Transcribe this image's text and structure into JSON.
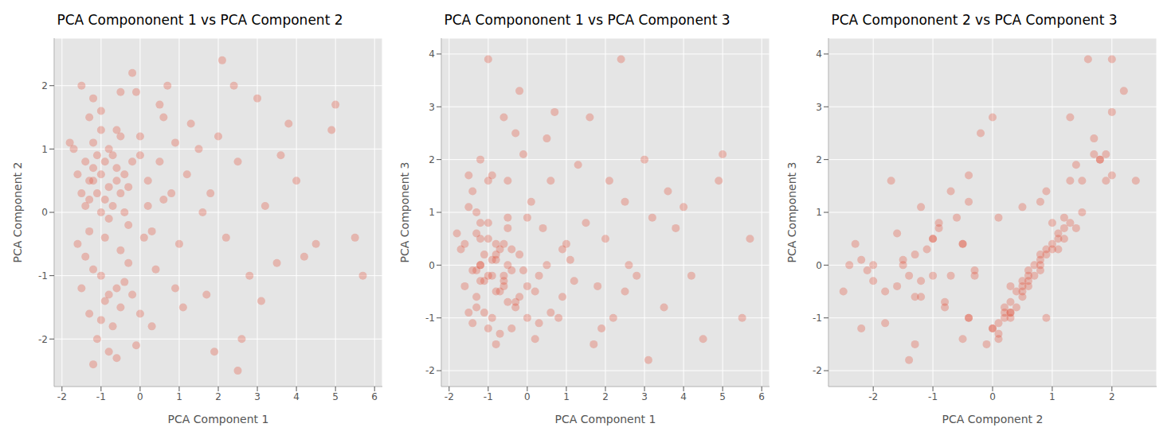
{
  "chart_data": [
    {
      "type": "scatter",
      "title": "PCA Compononent 1 vs PCA Component 2",
      "x_label": "PCA Component 1",
      "y_label": "PCA Component 2",
      "color": "#E24A33",
      "marker": "circle",
      "grid": true,
      "xlim": [
        -2.2,
        6.2
      ],
      "xticks": [
        -2,
        -1,
        0,
        1,
        2,
        3,
        4,
        5,
        6
      ],
      "ylim": [
        -2.75,
        2.75
      ],
      "yticks": [
        -2,
        -1,
        0,
        1,
        2
      ],
      "x": [
        -1.2,
        -1.0,
        -0.8,
        -1.3,
        -0.9,
        -0.6,
        -1.1,
        -1.4,
        -0.7,
        -1.2,
        -0.5,
        -1.0,
        -0.8,
        -1.3,
        -0.4,
        -1.5,
        -0.9,
        -1.1,
        -0.6,
        -1.6,
        -0.3,
        -1.2,
        -0.7,
        -1.0,
        -0.2,
        -1.4,
        -0.5,
        -0.8,
        -1.7,
        -1.3,
        -0.8,
        -0.6,
        -1.0,
        -0.5,
        -0.7,
        -1.2,
        -0.9,
        -0.4,
        -1.1,
        -0.6,
        -1.3,
        -0.2,
        -0.8,
        -1.5,
        0,
        -1.2,
        -0.3,
        -1.0,
        -0.5,
        -1.4,
        0.2,
        0.5,
        0,
        0.3,
        0.8,
        0.6,
        -0.1,
        1.0,
        0.4,
        1.2,
        0.1,
        0.7,
        -0.2,
        1.5,
        0.9,
        1.3,
        0.2,
        -0.3,
        0.5,
        1.1,
        1.8,
        2.0,
        2.2,
        2.5,
        2.8,
        3.0,
        3.2,
        3.5,
        2.4,
        4.0,
        4.2,
        3.8,
        4.5,
        5.0,
        5.5,
        5.7,
        1.9,
        2.6,
        2.1,
        3.6,
        1.7,
        4.9,
        3.1,
        2.5,
        1.6,
        -1.6,
        -1.8,
        -1.5,
        -1.2,
        -0.5,
        -0.9,
        -0.1,
        0.3,
        -1.0,
        -0.6,
        0,
        -0.4,
        0.6,
        -1.3,
        0.9
      ],
      "y": [
        0.5,
        0.6,
        0.4,
        0.2,
        0.8,
        0.5,
        0.3,
        0.1,
        0.9,
        0.7,
        0.3,
        0,
        1.0,
        0.5,
        0.6,
        0.3,
        0.2,
        0.9,
        0.7,
        0.6,
        0.4,
        1.1,
        0.1,
        1.3,
        0.8,
        0.8,
        1.2,
        -0.1,
        1.0,
        1.5,
        -1.3,
        -1.2,
        -1.0,
        -1.5,
        -1.8,
        -0.9,
        -1.4,
        -1.1,
        -2.0,
        -2.3,
        -1.6,
        -1.3,
        -2.2,
        -1.2,
        -1.6,
        -2.4,
        -0.8,
        -1.7,
        -0.6,
        -0.7,
        0.5,
        0.8,
        1.2,
        -0.3,
        0.3,
        1.5,
        1.9,
        -0.5,
        -0.9,
        0.6,
        -0.4,
        2.0,
        2.2,
        1.0,
        -1.2,
        1.4,
        0.1,
        -0.2,
        1.7,
        -1.5,
        0.3,
        1.2,
        -0.4,
        0.8,
        -1.0,
        1.8,
        0.1,
        -0.8,
        2.0,
        0.5,
        -0.7,
        1.4,
        -0.5,
        1.7,
        -0.4,
        -1.0,
        -2.2,
        -2.0,
        2.4,
        0.9,
        -1.3,
        1.3,
        -1.4,
        -2.5,
        0,
        -0.5,
        1.1,
        2.0,
        1.8,
        1.9,
        -0.4,
        -2.1,
        -1.8,
        1.6,
        1.3,
        0.9,
        0,
        0.2,
        -0.3,
        1.1
      ]
    },
    {
      "type": "scatter",
      "title": "PCA Compononent 1 vs PCA Component 3",
      "x_label": "PCA Component 1",
      "y_label": "PCA Component 3",
      "color": "#E24A33",
      "marker": "circle",
      "grid": true,
      "xlim": [
        -2.2,
        6.2
      ],
      "xticks": [
        -2,
        -1,
        0,
        1,
        2,
        3,
        4,
        5,
        6
      ],
      "ylim": [
        -2.3,
        4.3
      ],
      "yticks": [
        -2,
        -1,
        0,
        1,
        2,
        3,
        4
      ],
      "x": [
        -1.2,
        -1.0,
        -0.8,
        -1.3,
        -0.9,
        -0.6,
        -1.1,
        -1.4,
        -0.7,
        -1.2,
        -0.5,
        -1.0,
        -0.8,
        -1.3,
        -0.4,
        -1.5,
        -0.9,
        -1.1,
        -0.6,
        -1.6,
        -0.3,
        -1.2,
        -0.7,
        -1.0,
        -0.2,
        -1.4,
        -0.5,
        -0.8,
        -1.7,
        -1.3,
        -0.8,
        -0.6,
        -1.0,
        -0.5,
        -0.7,
        -1.2,
        -0.9,
        -0.4,
        -1.1,
        -0.6,
        -1.3,
        -0.2,
        -0.8,
        -1.5,
        0,
        -1.2,
        -0.3,
        -1.0,
        -0.5,
        -1.4,
        0.2,
        0.5,
        0,
        0.3,
        0.8,
        0.6,
        -0.1,
        1.0,
        0.4,
        1.2,
        0.1,
        0.7,
        -0.2,
        1.5,
        0.9,
        1.3,
        0.2,
        -0.3,
        0.5,
        1.1,
        1.8,
        2.0,
        2.2,
        2.5,
        2.8,
        3.0,
        3.2,
        3.5,
        2.4,
        4.0,
        4.2,
        3.8,
        4.5,
        5.0,
        5.5,
        5.7,
        1.9,
        2.6,
        2.1,
        3.6,
        1.7,
        4.9,
        3.1,
        2.5,
        1.6,
        -1.6,
        -1.8,
        -1.5,
        -1.2,
        -0.5,
        -0.9,
        -0.1,
        0.3,
        -1.0,
        -0.6,
        0,
        -0.4,
        0.6,
        -1.3,
        0.9
      ],
      "y": [
        -0.3,
        -0.2,
        -0.5,
        -0.8,
        0.1,
        -0.4,
        -0.9,
        -1.1,
        0.3,
        0,
        -0.7,
        -1.2,
        0.4,
        -0.6,
        -0.1,
        -0.9,
        -1.0,
        0.2,
        -0.2,
        -0.4,
        -0.8,
        0.5,
        -1.3,
        0.8,
        0.2,
        -0.1,
        0.7,
        -1.5,
        0.3,
        1.0,
        0.2,
        -0.3,
        0.5,
        0,
        -0.5,
        0.8,
        -0.2,
        0.3,
        -0.3,
        0.4,
        0.6,
        -0.6,
        0.1,
        1.1,
        -0.4,
        0,
        -0.7,
        1.6,
        0.9,
        1.4,
        -0.5,
        0,
        0.9,
        -0.2,
        -1.0,
        1.6,
        2.1,
        0.4,
        0.7,
        -0.3,
        1.2,
        2.9,
        3.3,
        0.8,
        -0.6,
        1.9,
        -1.4,
        2.5,
        2.4,
        0.1,
        -0.4,
        0.5,
        -1.0,
        1.2,
        -0.2,
        2.0,
        0.9,
        -0.8,
        3.9,
        1.1,
        -0.2,
        0.7,
        -1.4,
        2.1,
        -1.0,
        0.5,
        -1.2,
        0,
        1.6,
        1.4,
        -1.5,
        1.6,
        -1.8,
        -0.5,
        2.8,
        0.4,
        0.6,
        1.7,
        2.0,
        1.6,
        1.7,
        -0.1,
        -1.1,
        3.9,
        2.8,
        -1.0,
        -1.2,
        -0.9,
        -0.1,
        0.3
      ]
    },
    {
      "type": "scatter",
      "title": "PCA Compononent 2 vs PCA Component 3",
      "x_label": "PCA Component 2",
      "y_label": "PCA Component 3",
      "color": "#E24A33",
      "marker": "circle",
      "grid": true,
      "xlim": [
        -2.75,
        2.75
      ],
      "xticks": [
        -2,
        -1,
        0,
        1,
        2
      ],
      "ylim": [
        -2.3,
        4.3
      ],
      "yticks": [
        -2,
        -1,
        0,
        1,
        2,
        3,
        4
      ],
      "x": [
        0.5,
        0.6,
        0.4,
        0.2,
        0.8,
        0.5,
        0.3,
        0.1,
        0.9,
        0.7,
        0.3,
        0,
        1.0,
        0.5,
        0.6,
        0.3,
        0.2,
        0.9,
        0.7,
        0.6,
        0.4,
        1.1,
        0.1,
        1.3,
        0.8,
        0.8,
        1.2,
        -0.1,
        1.0,
        1.5,
        -1.3,
        -1.2,
        -1.0,
        -1.5,
        -1.8,
        -0.9,
        -1.4,
        -1.1,
        -2.0,
        -2.3,
        -1.6,
        -1.3,
        -2.2,
        -1.2,
        -1.6,
        -2.4,
        -0.8,
        -1.7,
        -0.6,
        -0.7,
        0.5,
        0.8,
        1.2,
        -0.3,
        0.3,
        1.5,
        1.9,
        -0.5,
        -0.9,
        0.6,
        -0.4,
        2.0,
        2.2,
        1.0,
        -1.2,
        1.4,
        0.1,
        -0.2,
        1.7,
        -1.5,
        0.3,
        1.2,
        -0.4,
        0.8,
        -1.0,
        1.8,
        0.1,
        -0.8,
        2.0,
        0.5,
        -0.7,
        1.4,
        -0.5,
        1.7,
        -0.4,
        -1.0,
        -2.2,
        -2.0,
        2.4,
        0.9,
        -1.3,
        1.3,
        -1.4,
        -2.5,
        0,
        -0.5,
        1.1,
        2.0,
        1.8,
        1.9,
        -0.4,
        -2.1,
        -1.8,
        1.6,
        1.3,
        0.9,
        0,
        0.2,
        -0.3,
        1.1
      ],
      "y": [
        -0.3,
        -0.2,
        -0.5,
        -0.8,
        0.1,
        -0.4,
        -0.9,
        -1.1,
        0.3,
        0,
        -0.7,
        -1.2,
        0.4,
        -0.6,
        -0.1,
        -0.9,
        -1.0,
        0.2,
        -0.2,
        -0.4,
        -0.8,
        0.5,
        -1.3,
        0.8,
        0.2,
        -0.1,
        0.7,
        -1.5,
        0.3,
        1.0,
        0.2,
        -0.3,
        0.5,
        0,
        -0.5,
        0.8,
        -0.2,
        0.3,
        -0.3,
        0.4,
        0.6,
        -0.6,
        0.1,
        1.1,
        -0.4,
        0,
        -0.7,
        1.6,
        0.9,
        1.4,
        -0.5,
        0,
        0.9,
        -0.2,
        -1.0,
        1.6,
        2.1,
        0.4,
        0.7,
        -0.3,
        1.2,
        2.9,
        3.3,
        0.8,
        -0.6,
        1.9,
        -1.4,
        2.5,
        2.4,
        0.1,
        -0.4,
        0.5,
        -1.0,
        1.2,
        -0.2,
        2.0,
        0.9,
        -0.8,
        3.9,
        1.1,
        -0.2,
        0.7,
        -1.4,
        2.1,
        -1.0,
        0.5,
        -1.2,
        0,
        1.6,
        1.4,
        -1.5,
        1.6,
        -1.8,
        -0.5,
        2.8,
        0.4,
        0.6,
        1.7,
        2.0,
        1.6,
        1.7,
        -0.1,
        -1.1,
        3.9,
        2.8,
        -1.0,
        -1.2,
        -0.9,
        -0.1,
        0.3
      ]
    }
  ]
}
